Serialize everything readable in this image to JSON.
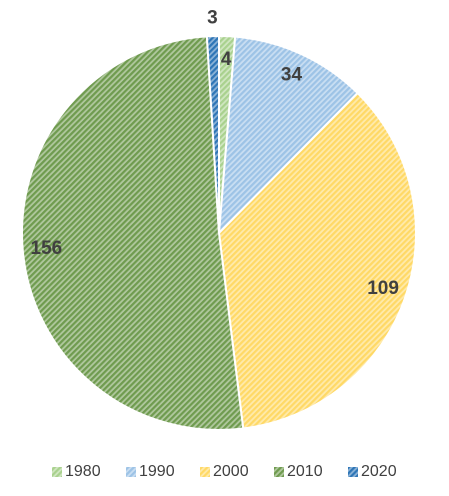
{
  "chart_data": {
    "type": "pie",
    "categories": [
      "1980",
      "1990",
      "2000",
      "2010",
      "2020"
    ],
    "values": [
      4,
      34,
      109,
      156,
      3
    ],
    "colors": [
      "#a9d18e",
      "#9dc3e6",
      "#ffd966",
      "#6f9b4f",
      "#2e75b6"
    ],
    "legend": "bottom"
  }
}
